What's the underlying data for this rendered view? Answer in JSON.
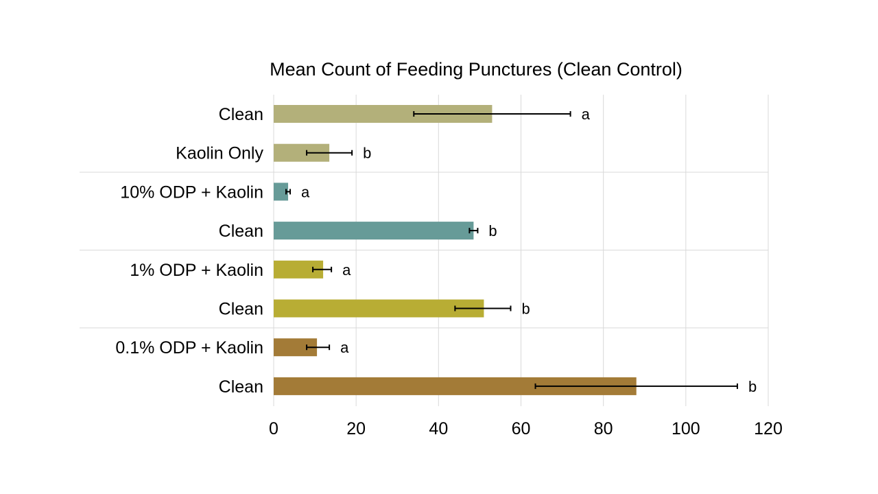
{
  "chart_data": {
    "type": "bar",
    "orientation": "horizontal",
    "title": "Mean Count of Feeding Punctures (Clean Control)",
    "xlabel": "",
    "ylabel": "",
    "xlim": [
      0,
      120
    ],
    "xticks": [
      0,
      20,
      40,
      60,
      80,
      100,
      120
    ],
    "grid": "vertical",
    "legend": "none",
    "groups": [
      {
        "color": "#b3b07a",
        "bars": [
          {
            "category": "Clean",
            "value": 53,
            "error": [
              34,
              72
            ],
            "significance": "a"
          },
          {
            "category": "Kaolin Only",
            "value": 13.5,
            "error": [
              8,
              19
            ],
            "significance": "b"
          }
        ]
      },
      {
        "color": "#679b98",
        "bars": [
          {
            "category": "10% ODP + Kaolin",
            "value": 3.5,
            "error": [
              3,
              4
            ],
            "significance": "a"
          },
          {
            "category": "Clean",
            "value": 48.5,
            "error": [
              47.5,
              49.5
            ],
            "significance": "b"
          }
        ]
      },
      {
        "color": "#b8ad34",
        "bars": [
          {
            "category": "1% ODP + Kaolin",
            "value": 12,
            "error": [
              9.5,
              14
            ],
            "significance": "a"
          },
          {
            "category": "Clean",
            "value": 51,
            "error": [
              44,
              57.5
            ],
            "significance": "b"
          }
        ]
      },
      {
        "color": "#a37b37",
        "bars": [
          {
            "category": "0.1% ODP + Kaolin",
            "value": 10.5,
            "error": [
              8,
              13.5
            ],
            "significance": "a"
          },
          {
            "category": "Clean",
            "value": 88,
            "error": [
              63.5,
              112.5
            ],
            "significance": "b"
          }
        ]
      }
    ]
  }
}
